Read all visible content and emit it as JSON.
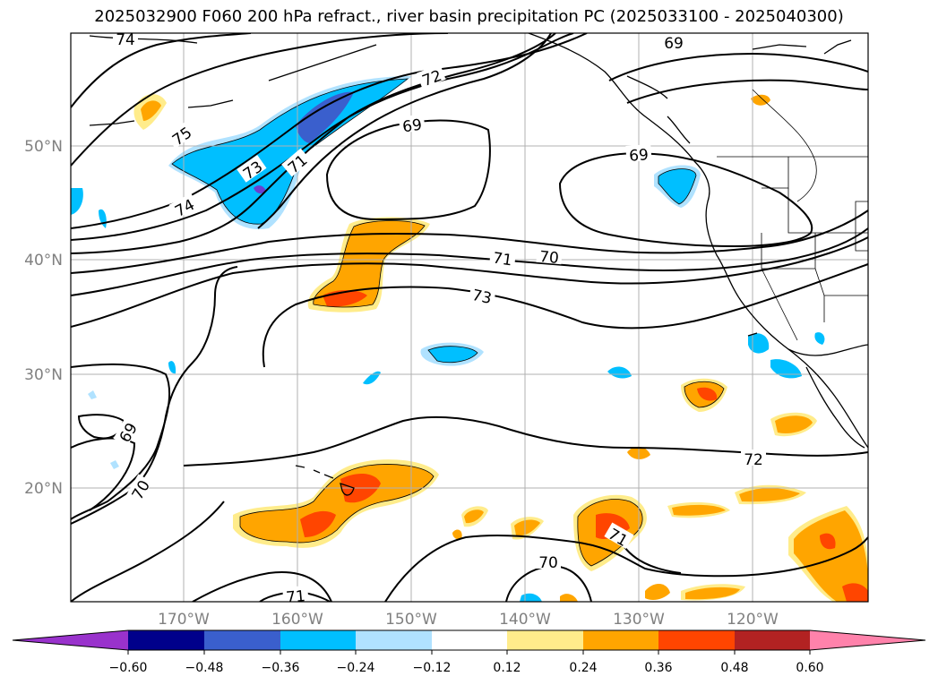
{
  "title": "2025032900 F060 200 hPa refract., river basin precipitation PC (2025033100 - 2025040300)",
  "lat_labels": [
    "50°N",
    "40°N",
    "30°N",
    "20°N"
  ],
  "lon_labels": [
    "170°W",
    "160°W",
    "150°W",
    "140°W",
    "130°W",
    "120°W"
  ],
  "contour_labels": [
    "74",
    "75",
    "72",
    "69",
    "69",
    "69",
    "73",
    "71",
    "74",
    "71",
    "70",
    "73",
    "69",
    "70",
    "72",
    "71",
    "70",
    "71"
  ],
  "colorbar": {
    "ticks": [
      "−0.60",
      "−0.48",
      "−0.36",
      "−0.24",
      "−0.12",
      "0.12",
      "0.24",
      "0.36",
      "0.48",
      "0.60"
    ],
    "colors": [
      "#9932cc",
      "#00008b",
      "#3a5fcd",
      "#00bfff",
      "#b0e2ff",
      "#ffffff",
      "#ffec8b",
      "#ffa500",
      "#ff4500",
      "#b22222",
      "#ff82ab"
    ]
  },
  "colors": {
    "neg_light": "#b0e2ff",
    "neg_mid": "#00bfff",
    "neg_strong": "#3a5fcd",
    "neg_purple": "#6a3fd0",
    "pos_light": "#ffec8b",
    "pos_mid": "#ffa500",
    "pos_strong": "#ff4500"
  }
}
